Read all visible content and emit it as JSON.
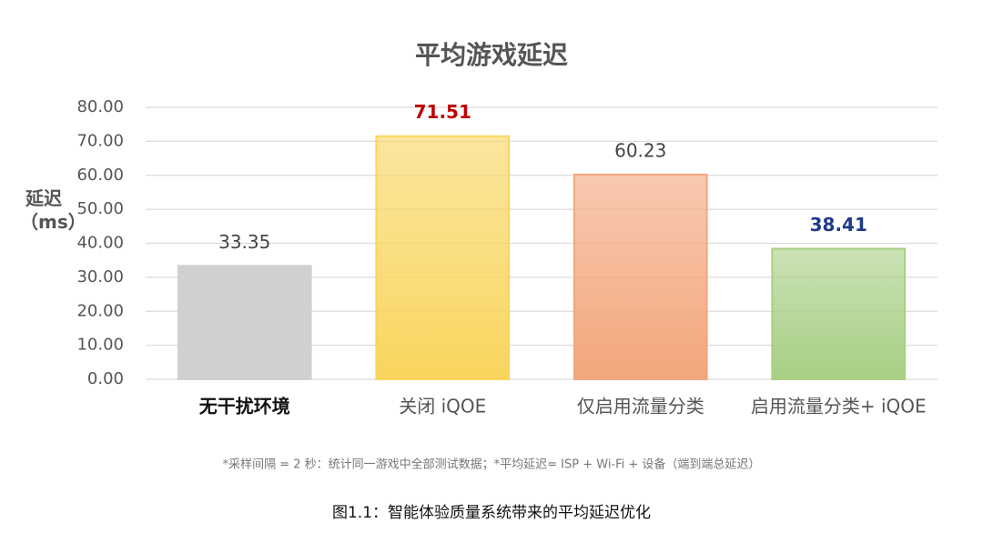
{
  "chart_data": {
    "type": "bar",
    "title": "平均游戏延迟",
    "ylabel": "延迟（ms）",
    "categories": [
      "无干扰环境",
      "关闭 iQOE",
      "仅启用流量分类",
      "启用流量分类+ iQOE"
    ],
    "values": [
      33.35,
      71.51,
      60.23,
      38.41
    ],
    "colors": [
      "#d0d0d0",
      "#f9d55e",
      "#f3a67c",
      "#a8cf84"
    ],
    "value_label_colors": [
      "#444444",
      "#c00000",
      "#444444",
      "#1f3a8a"
    ],
    "ylim": [
      0,
      80
    ],
    "yticks": [
      {
        "value": 0,
        "label": "0.00"
      },
      {
        "value": 10,
        "label": "10.00"
      },
      {
        "value": 20,
        "label": "20.00"
      },
      {
        "value": 30,
        "label": "30.00"
      },
      {
        "value": 40,
        "label": "40.00"
      },
      {
        "value": 50,
        "label": "50.00"
      },
      {
        "value": 60,
        "label": "60.00"
      },
      {
        "value": 70,
        "label": "70.00"
      },
      {
        "value": 80,
        "label": "80.00"
      }
    ],
    "grid": true,
    "footnote": "*采样间隔 = 2 秒：统计同一游戏中全部测试数据；*平均延迟= ISP + Wi-Fi + 设备（端到端总延迟）",
    "caption": "图1.1：智能体验质量系统带来的平均延迟优化"
  }
}
